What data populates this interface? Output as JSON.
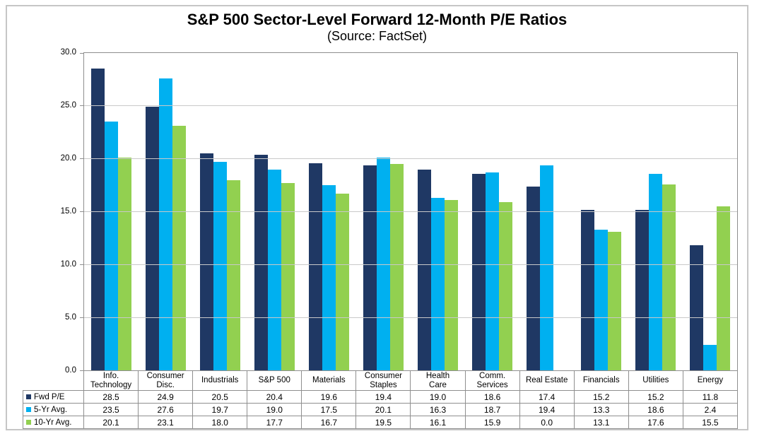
{
  "chart_data": {
    "type": "bar",
    "title": "S&P 500 Sector-Level Forward 12-Month P/E Ratios",
    "subtitle": "(Source: FactSet)",
    "categories": [
      "Info. Technology",
      "Consumer Disc.",
      "Industrials",
      "S&P 500",
      "Materials",
      "Consumer Staples",
      "Health Care",
      "Comm. Services",
      "Real Estate",
      "Financials",
      "Utilities",
      "Energy"
    ],
    "category_labels": [
      "Info.\nTechnology",
      "Consumer\nDisc.",
      "Industrials",
      "S&P 500",
      "Materials",
      "Consumer\nStaples",
      "Health\nCare",
      "Comm.\nServices",
      "Real Estate",
      "Financials",
      "Utilities",
      "Energy"
    ],
    "series": [
      {
        "name": "Fwd P/E",
        "color": "#1F3864",
        "values": [
          28.5,
          24.9,
          20.5,
          20.4,
          19.6,
          19.4,
          19.0,
          18.6,
          17.4,
          15.2,
          15.2,
          11.8
        ]
      },
      {
        "name": "5-Yr Avg.",
        "color": "#00B0F0",
        "values": [
          23.5,
          27.6,
          19.7,
          19.0,
          17.5,
          20.1,
          16.3,
          18.7,
          19.4,
          13.3,
          18.6,
          2.4
        ]
      },
      {
        "name": "10-Yr Avg.",
        "color": "#92D050",
        "values": [
          20.1,
          23.1,
          18.0,
          17.7,
          16.7,
          19.5,
          16.1,
          15.9,
          0.0,
          13.1,
          17.6,
          15.5
        ]
      }
    ],
    "ylim": [
      0,
      30
    ],
    "ytick_step": 5,
    "ytick_labels": [
      "30.0",
      "25.0",
      "20.0",
      "15.0",
      "10.0",
      "5.0",
      "0.0"
    ],
    "grid": true,
    "legend_position": "table-left",
    "value_format": "one-decimal"
  }
}
